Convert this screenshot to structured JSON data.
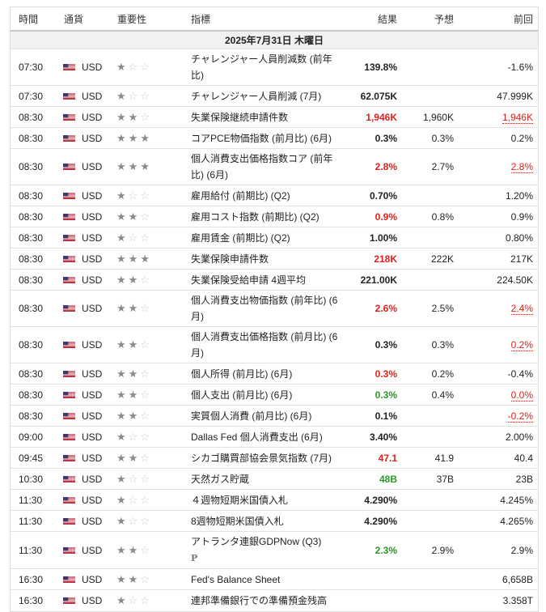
{
  "headers": {
    "time": "時間",
    "currency": "通貨",
    "importance": "重要性",
    "event": "指標",
    "actual": "結果",
    "forecast": "予想",
    "previous": "前回"
  },
  "date_label": "2025年7月31日 木曜日",
  "colors": {
    "red": "#e0201a",
    "green": "#2a9a26"
  },
  "rows": [
    {
      "time": "07:30",
      "cur": "USD",
      "imp": 1,
      "event": "チャレンジャー人員削減数 (前年比)",
      "actual": "139.8%",
      "ac": "",
      "forecast": "",
      "prev": "-1.6%",
      "pc": ""
    },
    {
      "time": "07:30",
      "cur": "USD",
      "imp": 1,
      "event": "チャレンジャー人員削減 (7月)",
      "actual": "62.075K",
      "ac": "",
      "forecast": "",
      "prev": "47.999K",
      "pc": ""
    },
    {
      "time": "08:30",
      "cur": "USD",
      "imp": 2,
      "event": "失業保険継続申請件数",
      "actual": "1,946K",
      "ac": "red",
      "forecast": "1,960K",
      "prev": "1,946K",
      "pc": "red"
    },
    {
      "time": "08:30",
      "cur": "USD",
      "imp": 3,
      "event": "コアPCE物価指数 (前月比) (6月)",
      "actual": "0.3%",
      "ac": "",
      "forecast": "0.3%",
      "prev": "0.2%",
      "pc": ""
    },
    {
      "time": "08:30",
      "cur": "USD",
      "imp": 3,
      "event": "個人消費支出価格指数コア (前年比) (6月)",
      "actual": "2.8%",
      "ac": "red",
      "forecast": "2.7%",
      "prev": "2.8%",
      "pc": "red"
    },
    {
      "time": "08:30",
      "cur": "USD",
      "imp": 1,
      "event": "雇用給付 (前期比) (Q2)",
      "actual": "0.70%",
      "ac": "",
      "forecast": "",
      "prev": "1.20%",
      "pc": ""
    },
    {
      "time": "08:30",
      "cur": "USD",
      "imp": 2,
      "event": "雇用コスト指数 (前期比) (Q2)",
      "actual": "0.9%",
      "ac": "red",
      "forecast": "0.8%",
      "prev": "0.9%",
      "pc": ""
    },
    {
      "time": "08:30",
      "cur": "USD",
      "imp": 1,
      "event": "雇用賃金 (前期比) (Q2)",
      "actual": "1.00%",
      "ac": "",
      "forecast": "",
      "prev": "0.80%",
      "pc": ""
    },
    {
      "time": "08:30",
      "cur": "USD",
      "imp": 3,
      "event": "失業保険申請件数",
      "actual": "218K",
      "ac": "red",
      "forecast": "222K",
      "prev": "217K",
      "pc": ""
    },
    {
      "time": "08:30",
      "cur": "USD",
      "imp": 2,
      "event": "失業保険受給申請 4週平均",
      "actual": "221.00K",
      "ac": "",
      "forecast": "",
      "prev": "224.50K",
      "pc": ""
    },
    {
      "time": "08:30",
      "cur": "USD",
      "imp": 2,
      "event": "個人消費支出物価指数 (前年比) (6月)",
      "actual": "2.6%",
      "ac": "red",
      "forecast": "2.5%",
      "prev": "2.4%",
      "pc": "red"
    },
    {
      "time": "08:30",
      "cur": "USD",
      "imp": 2,
      "event": "個人消費支出価格指数 (前月比) (6月)",
      "actual": "0.3%",
      "ac": "",
      "forecast": "0.3%",
      "prev": "0.2%",
      "pc": "red"
    },
    {
      "time": "08:30",
      "cur": "USD",
      "imp": 2,
      "event": "個人所得 (前月比) (6月)",
      "actual": "0.3%",
      "ac": "red",
      "forecast": "0.2%",
      "prev": "-0.4%",
      "pc": ""
    },
    {
      "time": "08:30",
      "cur": "USD",
      "imp": 2,
      "event": "個人支出 (前月比) (6月)",
      "actual": "0.3%",
      "ac": "green",
      "forecast": "0.4%",
      "prev": "0.0%",
      "pc": "red"
    },
    {
      "time": "08:30",
      "cur": "USD",
      "imp": 2,
      "event": "実質個人消費 (前月比) (6月)",
      "actual": "0.1%",
      "ac": "",
      "forecast": "",
      "prev": "-0.2%",
      "pc": "red"
    },
    {
      "time": "09:00",
      "cur": "USD",
      "imp": 1,
      "event": "Dallas Fed 個人消費支出 (6月)",
      "actual": "3.40%",
      "ac": "",
      "forecast": "",
      "prev": "2.00%",
      "pc": ""
    },
    {
      "time": "09:45",
      "cur": "USD",
      "imp": 2,
      "event": "シカゴ購買部協会景気指数 (7月)",
      "actual": "47.1",
      "ac": "red",
      "forecast": "41.9",
      "prev": "40.4",
      "pc": ""
    },
    {
      "time": "10:30",
      "cur": "USD",
      "imp": 1,
      "event": "天然ガス貯蔵",
      "actual": "48B",
      "ac": "green",
      "forecast": "37B",
      "prev": "23B",
      "pc": ""
    },
    {
      "time": "11:30",
      "cur": "USD",
      "imp": 1,
      "event": "４週物短期米国債入札",
      "actual": "4.290%",
      "ac": "",
      "forecast": "",
      "prev": "4.245%",
      "pc": ""
    },
    {
      "time": "11:30",
      "cur": "USD",
      "imp": 1,
      "event": "8週物短期米国債入札",
      "actual": "4.290%",
      "ac": "",
      "forecast": "",
      "prev": "4.265%",
      "pc": ""
    },
    {
      "time": "11:30",
      "cur": "USD",
      "imp": 2,
      "event": "アトランタ連銀GDPNow (Q3)",
      "sub": "P",
      "actual": "2.3%",
      "ac": "green",
      "forecast": "2.9%",
      "prev": "2.9%",
      "pc": ""
    },
    {
      "time": "16:30",
      "cur": "USD",
      "imp": 2,
      "event": "Fed's Balance Sheet",
      "actual": "",
      "ac": "",
      "forecast": "",
      "prev": "6,658B",
      "pc": ""
    },
    {
      "time": "16:30",
      "cur": "USD",
      "imp": 1,
      "event": "連邦準備銀行での準備預金残高",
      "actual": "",
      "ac": "",
      "forecast": "",
      "prev": "3.358T",
      "pc": ""
    }
  ]
}
